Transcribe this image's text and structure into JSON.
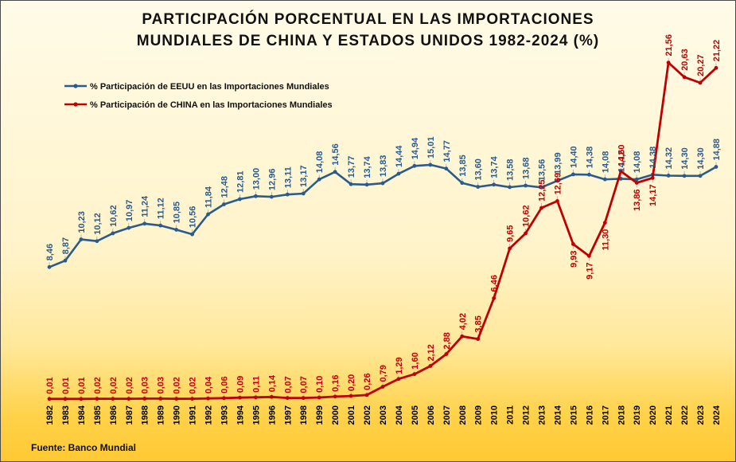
{
  "title_line1": "PARTICIPACIÓN PORCENTUAL EN LAS IMPORTACIONES",
  "title_line2": "MUNDIALES DE CHINA Y ESTADOS UNIDOS 1982-2024 (%)",
  "source": "Fuente: Banco Mundial",
  "colors": {
    "usa": "#2b5a8c",
    "china": "#c00000"
  },
  "chart_data": {
    "type": "line",
    "title": "PARTICIPACIÓN PORCENTUAL EN LAS IMPORTACIONES MUNDIALES DE CHINA Y ESTADOS UNIDOS 1982-2024 (%)",
    "xlabel": "",
    "ylabel": "",
    "ylim": [
      0,
      22
    ],
    "grid": false,
    "legend": "top-left",
    "x": [
      "1982",
      "1983",
      "1984",
      "1985",
      "1986",
      "1987",
      "1988",
      "1989",
      "1990",
      "1991",
      "1992",
      "1993",
      "1994",
      "1995",
      "1996",
      "1997",
      "1998",
      "1999",
      "2000",
      "2001",
      "2002",
      "2003",
      "2004",
      "2005",
      "2006",
      "2007",
      "2008",
      "2009",
      "2010",
      "2011",
      "2012",
      "2013",
      "2014",
      "2015",
      "2016",
      "2017",
      "2018",
      "2019",
      "2020",
      "2021",
      "2022",
      "2023",
      "2024"
    ],
    "series": [
      {
        "name": "% Participación de EEUU en las Importaciones Mundiales",
        "values": [
          8.46,
          8.87,
          10.23,
          10.12,
          10.62,
          10.97,
          11.24,
          11.12,
          10.85,
          10.56,
          11.84,
          12.48,
          12.81,
          13.0,
          12.96,
          13.11,
          13.17,
          14.08,
          14.56,
          13.77,
          13.74,
          13.83,
          14.44,
          14.94,
          15.01,
          14.77,
          13.85,
          13.6,
          13.74,
          13.58,
          13.68,
          13.56,
          13.99,
          14.4,
          14.38,
          14.08,
          14.12,
          14.08,
          14.38,
          14.32,
          14.3,
          14.3,
          14.88
        ],
        "labels": [
          "8,46",
          "8,87",
          "10,23",
          "10,12",
          "10,62",
          "10,97",
          "11,24",
          "11,12",
          "10,85",
          "10,56",
          "11,84",
          "12,48",
          "12,81",
          "13,00",
          "12,96",
          "13,11",
          "13,17",
          "14,08",
          "14,56",
          "13,77",
          "13,74",
          "13,83",
          "14,44",
          "14,94",
          "15,01",
          "14,77",
          "13,85",
          "13,60",
          "13,74",
          "13,58",
          "13,68",
          "13,56",
          "13,99",
          "14,40",
          "14,38",
          "14,08",
          "14,12",
          "14,08",
          "14,38",
          "14,32",
          "14,30",
          "14,30",
          "14,88"
        ]
      },
      {
        "name": "% Participación de CHINA en las Importaciones Mundiales",
        "values": [
          0.01,
          0.01,
          0.01,
          0.02,
          0.02,
          0.02,
          0.03,
          0.03,
          0.02,
          0.02,
          0.04,
          0.06,
          0.09,
          0.11,
          0.14,
          0.07,
          0.07,
          0.1,
          0.16,
          0.2,
          0.26,
          0.79,
          1.29,
          1.6,
          2.12,
          2.88,
          4.02,
          3.85,
          6.46,
          9.65,
          10.62,
          12.25,
          12.69,
          9.93,
          9.17,
          11.3,
          14.6,
          13.86,
          14.17,
          21.56,
          20.63,
          20.27,
          21.22
        ],
        "labels": [
          "0,01",
          "0,01",
          "0,01",
          "0,02",
          "0,02",
          "0,02",
          "0,03",
          "0,03",
          "0,02",
          "0,02",
          "0,04",
          "0,06",
          "0,09",
          "0,11",
          "0,14",
          "0,07",
          "0,07",
          "0,10",
          "0,16",
          "0,20",
          "0,26",
          "0,79",
          "1,29",
          "1,60",
          "2,12",
          "2,88",
          "4,02",
          "3,85",
          "6,46",
          "9,65",
          "10,62",
          "12,25",
          "12,69",
          "9,93",
          "9,17",
          "11,30",
          "14,60",
          "13,86",
          "14,17",
          "21,56",
          "20,63",
          "20,27",
          "21,22"
        ]
      }
    ]
  }
}
